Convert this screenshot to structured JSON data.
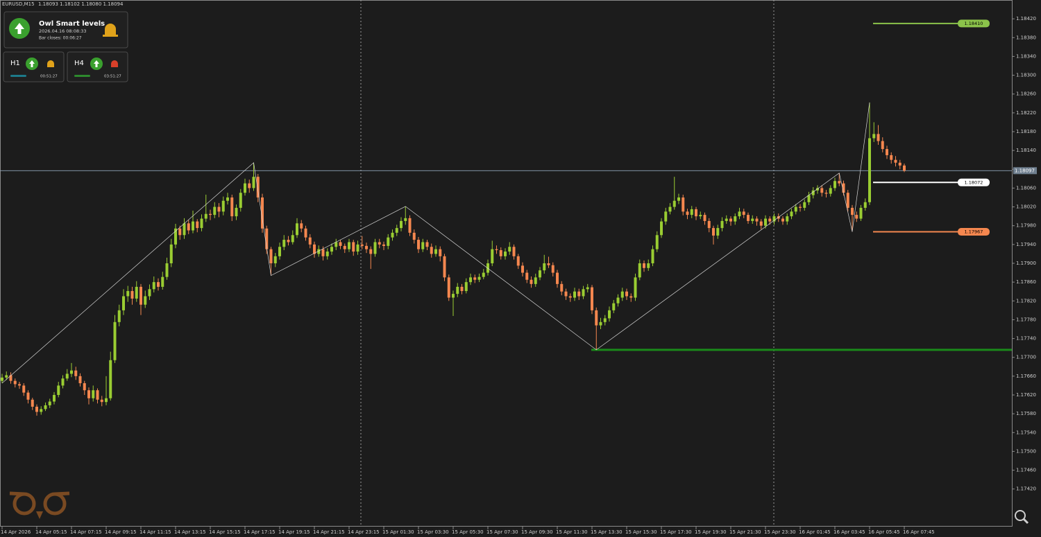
{
  "header": {
    "symbol": "EURUSD,M15",
    "quote": "1.18093 1.18102 1.18080 1.18094"
  },
  "panel": {
    "title": "Owl Smart levels",
    "time": "2026.04.16 08:08:33",
    "bar_closes": "Bar closes: 00:06:27",
    "frames": [
      {
        "name": "H1",
        "timer": "00:51:27"
      },
      {
        "name": "H4",
        "timer": "03:51:27"
      }
    ]
  },
  "chart_data": {
    "type": "candlestick",
    "up_color": "#9acd32",
    "down_color": "#f5874f",
    "ylim": [
      1.1734,
      1.1846
    ],
    "yticks": [
      {
        "value": 1.1742,
        "label": "1.17420"
      },
      {
        "value": 1.1746,
        "label": "1.17460"
      },
      {
        "value": 1.175,
        "label": "1.17500"
      },
      {
        "value": 1.1754,
        "label": "1.17540"
      },
      {
        "value": 1.1758,
        "label": "1.17580"
      },
      {
        "value": 1.1762,
        "label": "1.17620"
      },
      {
        "value": 1.1766,
        "label": "1.17660"
      },
      {
        "value": 1.177,
        "label": "1.17700"
      },
      {
        "value": 1.1774,
        "label": "1.17740"
      },
      {
        "value": 1.1778,
        "label": "1.17780"
      },
      {
        "value": 1.1782,
        "label": "1.17820"
      },
      {
        "value": 1.1786,
        "label": "1.17860"
      },
      {
        "value": 1.179,
        "label": "1.17900"
      },
      {
        "value": 1.1794,
        "label": "1.17940"
      },
      {
        "value": 1.1798,
        "label": "1.17980"
      },
      {
        "value": 1.1802,
        "label": "1.18020"
      },
      {
        "value": 1.1806,
        "label": "1.18060"
      },
      {
        "value": 1.181,
        "label": "1.18100"
      },
      {
        "value": 1.1814,
        "label": "1.18140"
      },
      {
        "value": 1.1818,
        "label": "1.18180"
      },
      {
        "value": 1.1822,
        "label": "1.18220"
      },
      {
        "value": 1.1826,
        "label": "1.18260"
      },
      {
        "value": 1.183,
        "label": "1.18300"
      },
      {
        "value": 1.1834,
        "label": "1.18340"
      },
      {
        "value": 1.1838,
        "label": "1.18380"
      },
      {
        "value": 1.1842,
        "label": "1.18420"
      }
    ],
    "categories": [
      "14 Apr 2026",
      null,
      null,
      null,
      null,
      null,
      null,
      null,
      "14 Apr 05:15",
      null,
      null,
      null,
      null,
      null,
      null,
      null,
      "14 Apr 07:15",
      null,
      null,
      null,
      null,
      null,
      null,
      null,
      "14 Apr 09:15",
      null,
      null,
      null,
      null,
      null,
      null,
      null,
      "14 Apr 11:15",
      null,
      null,
      null,
      null,
      null,
      null,
      null,
      "14 Apr 13:15",
      null,
      null,
      null,
      null,
      null,
      null,
      null,
      "14 Apr 15:15",
      null,
      null,
      null,
      null,
      null,
      null,
      null,
      "14 Apr 17:15",
      null,
      null,
      null,
      null,
      null,
      null,
      null,
      "14 Apr 19:15",
      null,
      null,
      null,
      null,
      null,
      null,
      null,
      "14 Apr 21:15",
      null,
      null,
      null,
      null,
      null,
      null,
      null,
      "14 Apr 23:15",
      null,
      null,
      null,
      null,
      null,
      null,
      null,
      "15 Apr 01:30",
      null,
      null,
      null,
      null,
      null,
      null,
      null,
      "15 Apr 03:30",
      null,
      null,
      null,
      null,
      null,
      null,
      null,
      "15 Apr 05:30",
      null,
      null,
      null,
      null,
      null,
      null,
      null,
      "15 Apr 07:30",
      null,
      null,
      null,
      null,
      null,
      null,
      null,
      "15 Apr 09:30",
      null,
      null,
      null,
      null,
      null,
      null,
      null,
      "15 Apr 11:30",
      null,
      null,
      null,
      null,
      null,
      null,
      null,
      "15 Apr 13:30",
      null,
      null,
      null,
      null,
      null,
      null,
      null,
      "15 Apr 15:30",
      null,
      null,
      null,
      null,
      null,
      null,
      null,
      "15 Apr 17:30",
      null,
      null,
      null,
      null,
      null,
      null,
      null,
      "15 Apr 19:30",
      null,
      null,
      null,
      null,
      null,
      null,
      null,
      "15 Apr 21:30",
      null,
      null,
      null,
      null,
      null,
      null,
      null,
      "15 Apr 23:30",
      null,
      null,
      null,
      null,
      null,
      null,
      null,
      "16 Apr 01:45",
      null,
      null,
      null,
      null,
      null,
      null,
      null,
      "16 Apr 03:45",
      null,
      null,
      null,
      null,
      null,
      null,
      null,
      "16 Apr 05:45",
      null,
      null,
      null,
      null,
      null,
      null,
      null,
      "16 Apr 07:45"
    ],
    "open": [
      1.1765,
      1.17657,
      1.17662,
      1.1765,
      1.17643,
      1.1764,
      1.17625,
      1.1761,
      1.17595,
      1.17584,
      1.1759,
      1.17598,
      1.17606,
      1.1762,
      1.1764,
      1.17655,
      1.17665,
      1.17672,
      1.1766,
      1.17645,
      1.1763,
      1.17613,
      1.1763,
      1.1761,
      1.17605,
      1.17613,
      1.17694,
      1.17775,
      1.178,
      1.1783,
      1.17841,
      1.17825,
      1.1785,
      1.17812,
      1.1783,
      1.17845,
      1.1786,
      1.1785,
      1.17871,
      1.179,
      1.1794,
      1.17974,
      1.1796,
      1.17985,
      1.1797,
      1.17989,
      1.17975,
      1.17995,
      1.18005,
      1.18003,
      1.1802,
      1.1801,
      1.18033,
      1.1804,
      1.18,
      1.18018,
      1.1805,
      1.1807,
      1.1806,
      1.18084,
      1.1804,
      1.17974,
      1.1793,
      1.179,
      1.17915,
      1.17935,
      1.1795,
      1.17945,
      1.1796,
      1.17985,
      1.17974,
      1.17955,
      1.1794,
      1.1792,
      1.1793,
      1.17915,
      1.17925,
      1.17935,
      1.17945,
      1.17937,
      1.1793,
      1.17945,
      1.17925,
      1.1794,
      1.17937,
      1.1793,
      1.1792,
      1.17945,
      1.1794,
      1.17937,
      1.17955,
      1.17965,
      1.17975,
      1.1799,
      1.17996,
      1.17965,
      1.1795,
      1.1793,
      1.17945,
      1.17935,
      1.1792,
      1.1793,
      1.17915,
      1.1787,
      1.17827,
      1.17835,
      1.1785,
      1.17841,
      1.1786,
      1.1787,
      1.17865,
      1.17871,
      1.1788,
      1.179,
      1.1793,
      1.17928,
      1.17915,
      1.17925,
      1.17935,
      1.17915,
      1.17895,
      1.1788,
      1.17865,
      1.17856,
      1.1787,
      1.17885,
      1.179,
      1.17896,
      1.1788,
      1.17856,
      1.1784,
      1.1783,
      1.17827,
      1.1784,
      1.1783,
      1.17845,
      1.17849,
      1.178,
      1.17768,
      1.17775,
      1.17783,
      1.178,
      1.17815,
      1.17827,
      1.1784,
      1.1783,
      1.17827,
      1.1787,
      1.179,
      1.1789,
      1.179,
      1.1793,
      1.1796,
      1.17989,
      1.1801,
      1.1802,
      1.18033,
      1.1804,
      1.1801,
      1.18003,
      1.18015,
      1.18,
      1.18003,
      1.1799,
      1.17975,
      1.17959,
      1.17975,
      1.1799,
      1.17995,
      1.17989,
      1.18,
      1.1801,
      1.18003,
      1.1799,
      1.17995,
      1.17989,
      1.1798,
      1.17995,
      1.17989,
      1.18,
      1.17995,
      1.17989,
      1.18,
      1.1801,
      1.1802,
      1.18018,
      1.1803,
      1.18045,
      1.18055,
      1.1806,
      1.1805,
      1.18048,
      1.1806,
      1.18075,
      1.1807,
      1.1805,
      1.18018,
      1.18003,
      1.17995,
      1.18018,
      1.1803,
      1.18166,
      1.18175,
      1.1816,
      1.18143,
      1.1813,
      1.1812,
      1.18114,
      1.18108
    ],
    "high": [
      1.17665,
      1.1767,
      1.17668,
      1.17655,
      1.17648,
      1.17645,
      1.1763,
      1.17614,
      1.176,
      1.17596,
      1.17604,
      1.17612,
      1.17626,
      1.17648,
      1.17662,
      1.17675,
      1.17688,
      1.1768,
      1.17666,
      1.1765,
      1.17636,
      1.1764,
      1.17634,
      1.17618,
      1.1766,
      1.17712,
      1.1779,
      1.17812,
      1.17845,
      1.17852,
      1.1785,
      1.17862,
      1.17856,
      1.17842,
      1.17855,
      1.17872,
      1.17868,
      1.17882,
      1.17912,
      1.17952,
      1.17984,
      1.1798,
      1.17996,
      1.17992,
      1.18012,
      1.17994,
      1.18004,
      1.18046,
      1.18014,
      1.1803,
      1.18028,
      1.18042,
      1.1805,
      1.18046,
      1.18025,
      1.18058,
      1.1808,
      1.18078,
      1.18114,
      1.1809,
      1.18048,
      1.1798,
      1.17935,
      1.17922,
      1.17944,
      1.1796,
      1.17958,
      1.1797,
      1.17996,
      1.17992,
      1.1798,
      1.17962,
      1.17946,
      1.17938,
      1.17936,
      1.17932,
      1.17942,
      1.17952,
      1.1795,
      1.17942,
      1.17952,
      1.1795,
      1.17948,
      1.17958,
      1.17944,
      1.17936,
      1.17952,
      1.17952,
      1.17946,
      1.17962,
      1.17972,
      1.17982,
      1.17998,
      1.18021,
      1.18002,
      1.17972,
      1.17956,
      1.17952,
      1.1795,
      1.17942,
      1.17938,
      1.17936,
      1.1792,
      1.17876,
      1.17842,
      1.17858,
      1.17856,
      1.17868,
      1.17878,
      1.17876,
      1.17878,
      1.17888,
      1.17908,
      1.17948,
      1.17938,
      1.17934,
      1.17932,
      1.17945,
      1.1794,
      1.1792,
      1.17902,
      1.17886,
      1.17872,
      1.17878,
      1.17892,
      1.17918,
      1.17914,
      1.17902,
      1.17886,
      1.17862,
      1.17846,
      1.17836,
      1.17848,
      1.17846,
      1.17852,
      1.17856,
      1.17854,
      1.17806,
      1.17784,
      1.1779,
      1.17808,
      1.17822,
      1.17834,
      1.17848,
      1.17846,
      1.17836,
      1.17878,
      1.17908,
      1.17906,
      1.17908,
      1.17938,
      1.17968,
      1.17996,
      1.18018,
      1.18028,
      1.18084,
      1.18048,
      1.18046,
      1.18016,
      1.18022,
      1.1802,
      1.1801,
      1.18008,
      1.17996,
      1.1798,
      1.17982,
      1.17998,
      1.18002,
      1.18,
      1.18006,
      1.18018,
      1.18016,
      1.18008,
      1.18002,
      1.18,
      1.17994,
      1.18002,
      1.18,
      1.18006,
      1.18006,
      1.18,
      1.18006,
      1.18016,
      1.18026,
      1.18026,
      1.18036,
      1.18052,
      1.18062,
      1.18066,
      1.18066,
      1.18056,
      1.18066,
      1.18082,
      1.18092,
      1.18076,
      1.18056,
      1.18024,
      1.1801,
      1.18024,
      1.18038,
      1.18242,
      1.182,
      1.18194,
      1.18168,
      1.1815,
      1.18136,
      1.18128,
      1.1812,
      1.18112
    ],
    "low": [
      1.17645,
      1.17652,
      1.17644,
      1.17636,
      1.17633,
      1.17618,
      1.17602,
      1.17588,
      1.17576,
      1.17578,
      1.17586,
      1.17592,
      1.176,
      1.17615,
      1.17634,
      1.1765,
      1.17658,
      1.17652,
      1.17638,
      1.1762,
      1.176,
      1.17606,
      1.17602,
      1.17596,
      1.17598,
      1.17608,
      1.17688,
      1.17766,
      1.1779,
      1.17818,
      1.17812,
      1.17818,
      1.1779,
      1.17805,
      1.17822,
      1.17838,
      1.17842,
      1.17844,
      1.17865,
      1.17892,
      1.17932,
      1.1795,
      1.17952,
      1.17962,
      1.17964,
      1.17966,
      1.17968,
      1.17988,
      1.17992,
      1.17996,
      1.17998,
      1.18002,
      1.18025,
      1.1799,
      1.17992,
      1.1801,
      1.18044,
      1.1805,
      1.18054,
      1.1803,
      1.17965,
      1.1792,
      1.17874,
      1.17892,
      1.17908,
      1.17928,
      1.17938,
      1.1794,
      1.17954,
      1.17966,
      1.17948,
      1.17932,
      1.17912,
      1.17914,
      1.17906,
      1.17908,
      1.17918,
      1.17928,
      1.1793,
      1.17922,
      1.17924,
      1.17916,
      1.17918,
      1.1793,
      1.17922,
      1.17888,
      1.17914,
      1.17932,
      1.17928,
      1.1793,
      1.17948,
      1.17958,
      1.17968,
      1.17982,
      1.17958,
      1.17942,
      1.17922,
      1.17924,
      1.17928,
      1.17912,
      1.17914,
      1.17904,
      1.17862,
      1.1782,
      1.17788,
      1.17828,
      1.17834,
      1.17836,
      1.17854,
      1.17858,
      1.1786,
      1.17866,
      1.17874,
      1.17894,
      1.1792,
      1.17908,
      1.17908,
      1.17918,
      1.17908,
      1.17888,
      1.17872,
      1.17858,
      1.17848,
      1.1785,
      1.17864,
      1.17878,
      1.1789,
      1.17872,
      1.17848,
      1.17832,
      1.17822,
      1.17818,
      1.1782,
      1.17822,
      1.17824,
      1.17838,
      1.17792,
      1.17716,
      1.1776,
      1.17768,
      1.17776,
      1.17794,
      1.17808,
      1.1782,
      1.17822,
      1.17818,
      1.1782,
      1.17864,
      1.17882,
      1.17884,
      1.17894,
      1.17924,
      1.17954,
      1.17982,
      1.18004,
      1.18014,
      1.18026,
      1.18002,
      1.17994,
      1.17996,
      1.17992,
      1.17994,
      1.17982,
      1.17966,
      1.1794,
      1.17952,
      1.17968,
      1.17984,
      1.1798,
      1.17982,
      1.17994,
      1.17996,
      1.17984,
      1.17984,
      1.1798,
      1.17972,
      1.17974,
      1.17982,
      1.17982,
      1.17988,
      1.17982,
      1.17982,
      1.17994,
      1.18004,
      1.1801,
      1.18012,
      1.18024,
      1.18038,
      1.18048,
      1.18042,
      1.1804,
      1.18042,
      1.18054,
      1.18064,
      1.18044,
      1.1801,
      1.17967,
      1.17988,
      1.1799,
      1.18012,
      1.18024,
      1.18158,
      1.18152,
      1.18136,
      1.18122,
      1.18112,
      1.18106,
      1.181,
      1.18094
    ],
    "close": [
      1.17657,
      1.17662,
      1.1765,
      1.17643,
      1.1764,
      1.17625,
      1.1761,
      1.17595,
      1.17584,
      1.1759,
      1.17598,
      1.17606,
      1.1762,
      1.1764,
      1.17655,
      1.17665,
      1.17672,
      1.1766,
      1.17645,
      1.1763,
      1.17613,
      1.1763,
      1.1761,
      1.17605,
      1.17613,
      1.17694,
      1.17775,
      1.178,
      1.1783,
      1.17841,
      1.17825,
      1.1785,
      1.17812,
      1.1783,
      1.17845,
      1.1786,
      1.1785,
      1.17871,
      1.179,
      1.1794,
      1.17974,
      1.1796,
      1.17985,
      1.1797,
      1.17989,
      1.17975,
      1.17995,
      1.18005,
      1.18003,
      1.1802,
      1.1801,
      1.18033,
      1.1804,
      1.18,
      1.18018,
      1.1805,
      1.1807,
      1.1806,
      1.18084,
      1.1804,
      1.17974,
      1.1793,
      1.179,
      1.17915,
      1.17935,
      1.1795,
      1.17945,
      1.1796,
      1.17985,
      1.17974,
      1.17955,
      1.1794,
      1.1792,
      1.1793,
      1.17915,
      1.17925,
      1.17935,
      1.17945,
      1.17937,
      1.1793,
      1.17945,
      1.17925,
      1.1794,
      1.17937,
      1.1793,
      1.1792,
      1.17945,
      1.1794,
      1.17937,
      1.17955,
      1.17965,
      1.17975,
      1.1799,
      1.17996,
      1.17965,
      1.1795,
      1.1793,
      1.17945,
      1.17935,
      1.1792,
      1.1793,
      1.17915,
      1.1787,
      1.17827,
      1.17835,
      1.1785,
      1.17841,
      1.1786,
      1.1787,
      1.17865,
      1.17871,
      1.1788,
      1.179,
      1.1793,
      1.17928,
      1.17915,
      1.17925,
      1.17935,
      1.17915,
      1.17895,
      1.1788,
      1.17865,
      1.17856,
      1.1787,
      1.17885,
      1.179,
      1.17896,
      1.1788,
      1.17856,
      1.1784,
      1.1783,
      1.17827,
      1.1784,
      1.1783,
      1.17845,
      1.17849,
      1.178,
      1.17768,
      1.17775,
      1.17783,
      1.178,
      1.17815,
      1.17827,
      1.1784,
      1.1783,
      1.17827,
      1.1787,
      1.179,
      1.1789,
      1.179,
      1.1793,
      1.1796,
      1.17989,
      1.1801,
      1.1802,
      1.18033,
      1.1804,
      1.1801,
      1.18003,
      1.18015,
      1.18,
      1.18003,
      1.1799,
      1.17975,
      1.17959,
      1.17975,
      1.1799,
      1.17995,
      1.17989,
      1.18,
      1.1801,
      1.18003,
      1.1799,
      1.17995,
      1.17989,
      1.1798,
      1.17995,
      1.17989,
      1.18,
      1.17995,
      1.17989,
      1.18,
      1.1801,
      1.1802,
      1.18018,
      1.1803,
      1.18045,
      1.18055,
      1.1806,
      1.1805,
      1.18048,
      1.1806,
      1.18075,
      1.1807,
      1.1805,
      1.18018,
      1.18003,
      1.17995,
      1.18018,
      1.1803,
      1.18166,
      1.18175,
      1.1816,
      1.18143,
      1.1813,
      1.1812,
      1.18114,
      1.18108,
      1.18097
    ],
    "levels": [
      {
        "value": 1.1841,
        "label": "1.18410",
        "color": "#8bc34a"
      },
      {
        "value": 1.18072,
        "label": "1.18072",
        "color": "#ffffff"
      },
      {
        "value": 1.17967,
        "label": "1.17967",
        "color": "#f5874f"
      }
    ],
    "current_price": {
      "value": 1.18097,
      "label": "1.18097"
    },
    "support": 1.17716
  }
}
